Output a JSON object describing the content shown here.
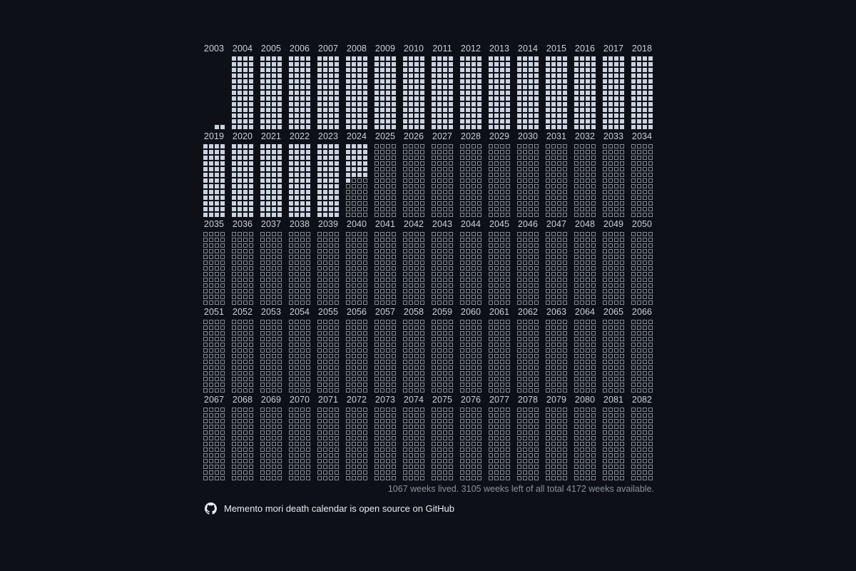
{
  "calendar": {
    "start_year": 2003,
    "end_year": 2082,
    "years_per_row": 16,
    "weeks_per_year": 52,
    "first_year_weeks_before_birth": 50,
    "weeks_lived": 1067,
    "weeks_total": 4172,
    "colors": {
      "lived": "#cbd2e0",
      "future_border": "#868c96",
      "background": "#0d1117"
    }
  },
  "summary": "1067 weeks lived. 3105 weeks left of all total 4172 weeks available.",
  "footer": {
    "icon": "github-icon",
    "text": "Memento mori death calendar is open source on GitHub"
  }
}
